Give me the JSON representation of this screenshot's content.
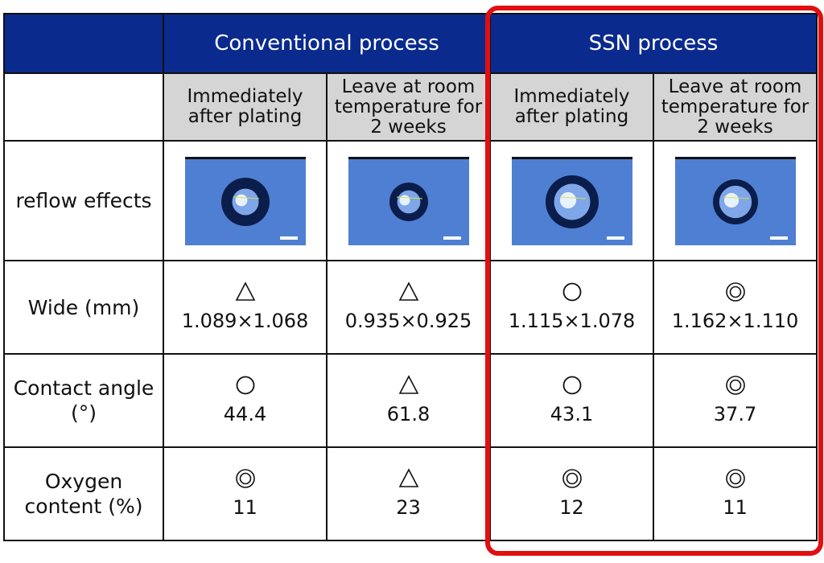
{
  "header": {
    "group_conventional": "Conventional process",
    "group_ssn": "SSN process"
  },
  "subheaders": {
    "c1": "Immediately after plating",
    "c2": "Leave at room temperature for 2 weeks",
    "c3": "Immediately after plating",
    "c4": "Leave at room temperature for 2 weeks"
  },
  "rows": {
    "reflow": {
      "label": "reflow effects"
    },
    "wide": {
      "label": "Wide (mm)",
      "cells": [
        {
          "symbol": "△",
          "value": "1.089×1.068"
        },
        {
          "symbol": "△",
          "value": "0.935×0.925"
        },
        {
          "symbol": "○",
          "value": "1.115×1.078"
        },
        {
          "symbol": "◎",
          "value": "1.162×1.110"
        }
      ]
    },
    "contact": {
      "label": "Contact angle (°)",
      "cells": [
        {
          "symbol": "○",
          "value": "44.4"
        },
        {
          "symbol": "△",
          "value": "61.8"
        },
        {
          "symbol": "○",
          "value": "43.1"
        },
        {
          "symbol": "◎",
          "value": "37.7"
        }
      ]
    },
    "oxygen": {
      "label": "Oxygen content (%)",
      "cells": [
        {
          "symbol": "◎",
          "value": "11"
        },
        {
          "symbol": "△",
          "value": "23"
        },
        {
          "symbol": "◎",
          "value": "12"
        },
        {
          "symbol": "◎",
          "value": "11"
        }
      ]
    }
  },
  "colors": {
    "header_bg": "#0b2a8e",
    "subheader_bg": "#d5d5d5",
    "highlight": "#e01010",
    "photo_bg": "#4f7fd2"
  }
}
